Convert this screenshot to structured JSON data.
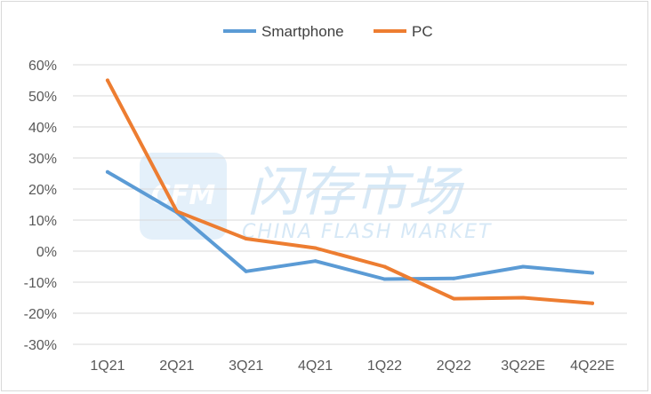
{
  "chart_data": {
    "type": "line",
    "categories": [
      "1Q21",
      "2Q21",
      "3Q21",
      "4Q21",
      "1Q22",
      "2Q22",
      "3Q22E",
      "4Q22E"
    ],
    "series": [
      {
        "name": "Smartphone",
        "color": "#5b9bd5",
        "values": [
          25.5,
          12.5,
          -6.5,
          -3.2,
          -9.0,
          -8.8,
          -5.0,
          -7.0
        ]
      },
      {
        "name": "PC",
        "color": "#ed7d31",
        "values": [
          55.0,
          12.8,
          4.0,
          1.0,
          -5.0,
          -15.3,
          -15.0,
          -16.8
        ]
      }
    ],
    "ylim": [
      -30,
      60
    ],
    "ytick_step": 10,
    "ytick_labels": [
      "60%",
      "50%",
      "40%",
      "30%",
      "20%",
      "10%",
      "0%",
      "-10%",
      "-20%",
      "-30%"
    ],
    "grid": true,
    "legend_position": "top-center"
  },
  "watermark": {
    "logo_text": "CFM",
    "cn_text": "闪存市场",
    "en_text": "CHINA FLASH MARKET",
    "color": "#cfe4f5"
  }
}
